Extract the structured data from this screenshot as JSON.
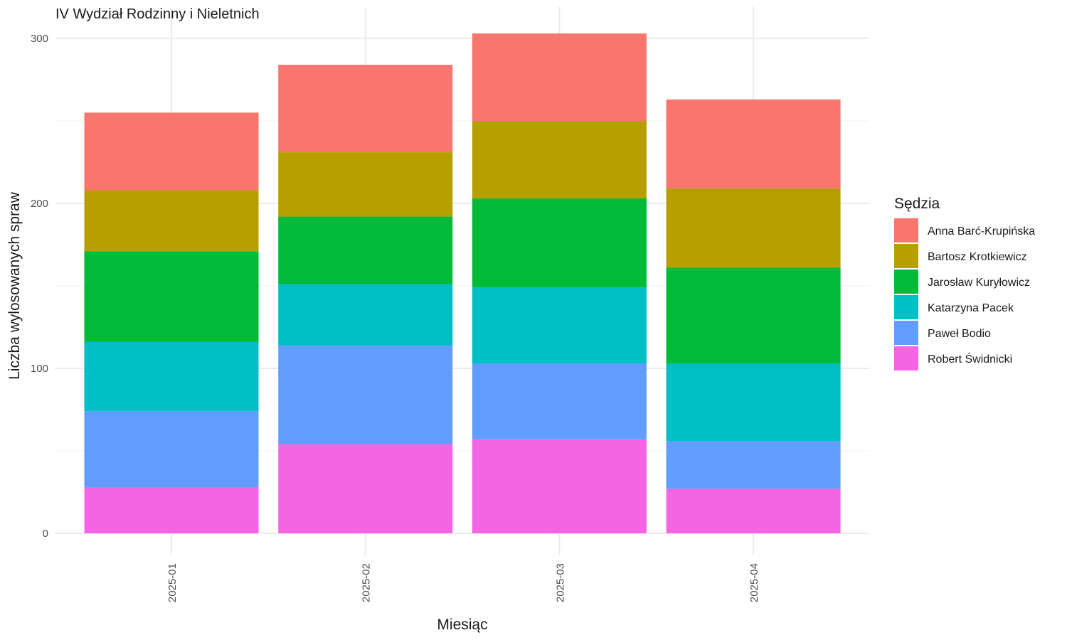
{
  "chart_data": {
    "type": "bar",
    "stacked": true,
    "title": "IV Wydział Rodzinny i Nieletnich",
    "xlabel": "Miesiąc",
    "ylabel": "Liczba wylosowanych spraw",
    "ylim": [
      0,
      315
    ],
    "yticks": [
      0,
      100,
      200,
      300
    ],
    "grid": true,
    "legend_title": "Sędzia",
    "legend_position": "right",
    "categories": [
      "2025-01",
      "2025-02",
      "2025-03",
      "2025-04"
    ],
    "series": [
      {
        "name": "Anna Barć-Krupińska",
        "color": "#F8766D",
        "values": [
          47,
          53,
          53,
          54
        ]
      },
      {
        "name": "Bartosz Krotkiewicz",
        "color": "#B79F00",
        "values": [
          37,
          39,
          47,
          48
        ]
      },
      {
        "name": "Jarosław Kuryłowicz",
        "color": "#00BA38",
        "values": [
          55,
          41,
          54,
          58
        ]
      },
      {
        "name": "Katarzyna Pacek",
        "color": "#00BFC4",
        "values": [
          42,
          37,
          46,
          47
        ]
      },
      {
        "name": "Paweł Bodio",
        "color": "#619CFF",
        "values": [
          46,
          60,
          46,
          29
        ]
      },
      {
        "name": "Robert Świdnicki",
        "color": "#F564E3",
        "values": [
          28,
          54,
          57,
          27
        ]
      }
    ]
  }
}
